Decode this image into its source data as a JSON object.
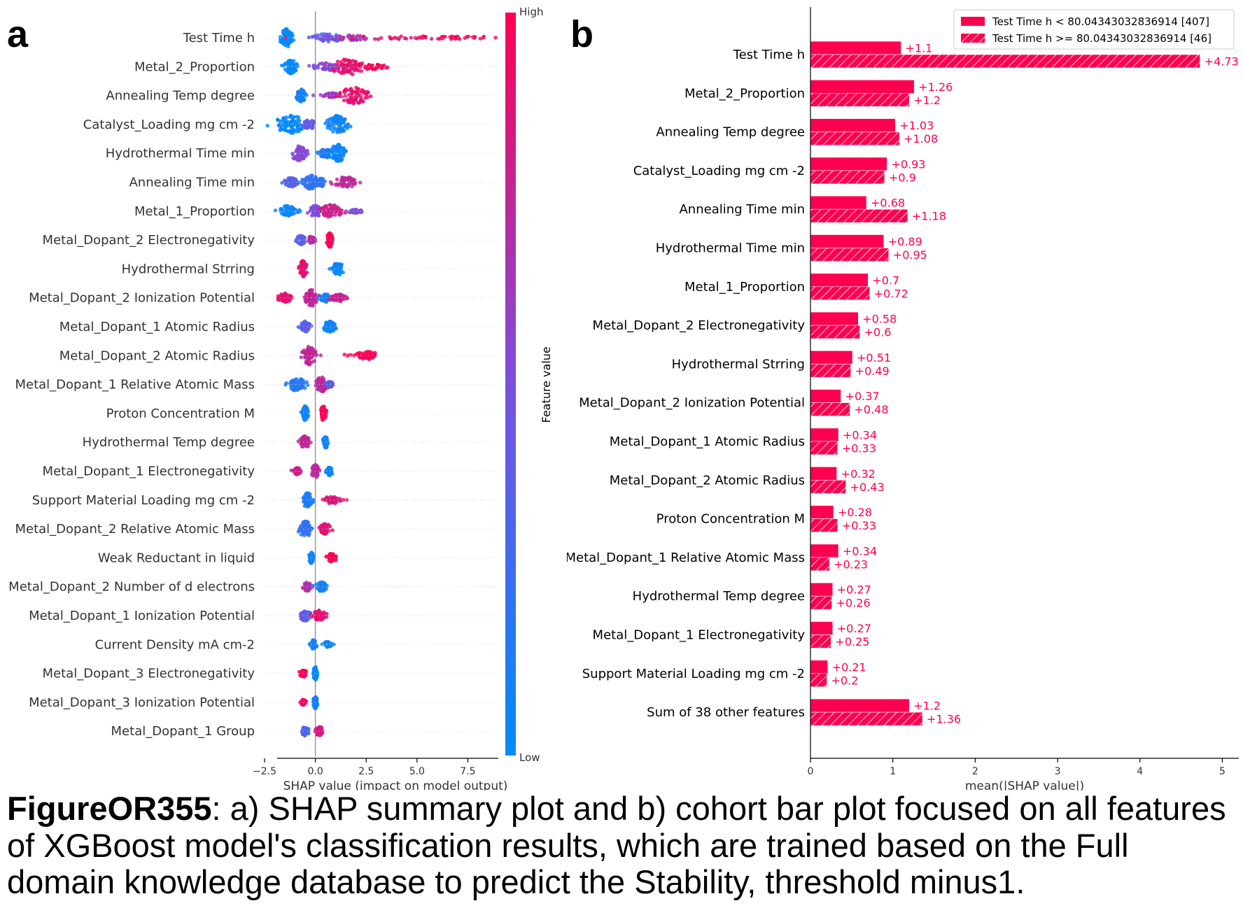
{
  "panels": {
    "a_label": "a",
    "b_label": "b"
  },
  "caption": {
    "figure_id": "FigureOR355",
    "text": ": a) SHAP summary plot and b) cohort bar plot focused on all features of XGBoost model's classification results, which are trained based on the Full domain knowledge database to predict the Stability, threshold minus1."
  },
  "colors": {
    "high": "#ff0051",
    "mid": "#7b4fe0",
    "low": "#008bfb",
    "axis": "#000000",
    "zero_line": "#999999"
  },
  "chart_data": [
    {
      "type": "scatter",
      "subtype": "shap_beeswarm",
      "features": [
        "Test Time h",
        "Metal_2_Proportion",
        "Annealing Temp degree",
        "Catalyst_Loading mg cm -2",
        "Hydrothermal Time min",
        "Annealing Time min",
        "Metal_1_Proportion",
        "Metal_Dopant_2 Electronegativity",
        "Hydrothermal Strring",
        "Metal_Dopant_2 Ionization Potential",
        "Metal_Dopant_1 Atomic Radius",
        "Metal_Dopant_2 Atomic Radius",
        "Metal_Dopant_1 Relative Atomic Mass",
        "Proton Concentration M",
        "Hydrothermal Temp degree",
        "Metal_Dopant_1 Electronegativity",
        "Support Material Loading mg cm -2",
        "Metal_Dopant_2 Relative Atomic Mass",
        "Weak Reductant in liquid",
        "Metal_Dopant_2 Number of d electrons",
        "Metal_Dopant_1 Ionization Potential",
        "Current Density mA cm-2",
        "Metal_Dopant_3 Electronegativity",
        "Metal_Dopant_3 Ionization Potential",
        "Metal_Dopant_1 Group"
      ],
      "clusters": [
        [
          [
            -1.4,
            0.35,
            0,
            1.0
          ],
          [
            0.6,
            0.9,
            0.4,
            0.45
          ],
          [
            1.8,
            1.2,
            0.65,
            0.3
          ],
          [
            4.0,
            3.5,
            0.9,
            0.2
          ],
          [
            7.0,
            2.3,
            1,
            0.1
          ]
        ],
        [
          [
            -1.2,
            0.3,
            0,
            0.8
          ],
          [
            0.5,
            0.7,
            0.55,
            0.45
          ],
          [
            1.6,
            1.0,
            0.9,
            0.9
          ],
          [
            2.9,
            0.6,
            1,
            0.3
          ]
        ],
        [
          [
            -0.7,
            0.25,
            0.1,
            0.7
          ],
          [
            0.8,
            0.5,
            0.6,
            0.3
          ],
          [
            1.9,
            0.9,
            0.9,
            0.9
          ]
        ],
        [
          [
            -1.2,
            0.9,
            0,
            1.0
          ],
          [
            -0.3,
            0.35,
            0.4,
            0.5
          ],
          [
            1.1,
            0.6,
            0.05,
            1.0
          ]
        ],
        [
          [
            -0.8,
            0.45,
            0.55,
            0.8
          ],
          [
            0.5,
            0.35,
            0.15,
            0.5
          ],
          [
            1.1,
            0.4,
            0.05,
            1.0
          ]
        ],
        [
          [
            -1.2,
            0.35,
            0.35,
            0.5
          ],
          [
            -0.2,
            0.45,
            0.2,
            0.8
          ],
          [
            1.5,
            0.7,
            0.75,
            0.6
          ],
          [
            0.3,
            0.15,
            0.2,
            0.5
          ]
        ],
        [
          [
            -1.4,
            0.5,
            0.05,
            0.6
          ],
          [
            0.0,
            0.4,
            0.5,
            0.6
          ],
          [
            0.8,
            0.6,
            0.8,
            0.7
          ],
          [
            2.0,
            0.4,
            0.5,
            0.2
          ]
        ],
        [
          [
            -0.7,
            0.25,
            0.35,
            0.5
          ],
          [
            -0.2,
            0.2,
            0.7,
            0.4
          ],
          [
            0.7,
            0.15,
            1,
            0.8
          ]
        ],
        [
          [
            -0.6,
            0.2,
            0.9,
            0.9
          ],
          [
            1.1,
            0.35,
            0.05,
            0.7
          ]
        ],
        [
          [
            -1.5,
            0.35,
            0.9,
            0.5
          ],
          [
            -0.2,
            0.35,
            0.75,
            0.9
          ],
          [
            0.5,
            0.3,
            0.1,
            0.5
          ],
          [
            1.2,
            0.5,
            0.8,
            0.4
          ]
        ],
        [
          [
            -0.5,
            0.25,
            0.35,
            0.6
          ],
          [
            0.7,
            0.35,
            0.05,
            0.6
          ]
        ],
        [
          [
            -0.3,
            0.35,
            0.75,
            1.0
          ],
          [
            2.5,
            0.8,
            1,
            0.45
          ]
        ],
        [
          [
            -0.9,
            0.55,
            0.15,
            0.7
          ],
          [
            0.3,
            0.35,
            0.75,
            0.8
          ],
          [
            0.7,
            0.2,
            0.4,
            0.3
          ]
        ],
        [
          [
            -0.5,
            0.15,
            0.05,
            0.8
          ],
          [
            0.4,
            0.15,
            1,
            0.8
          ]
        ],
        [
          [
            -0.5,
            0.25,
            0.75,
            0.7
          ],
          [
            0.5,
            0.15,
            0.05,
            0.6
          ]
        ],
        [
          [
            -0.9,
            0.2,
            0.8,
            0.4
          ],
          [
            0.0,
            0.2,
            0.75,
            0.7
          ],
          [
            0.7,
            0.15,
            0.05,
            0.5
          ]
        ],
        [
          [
            -0.4,
            0.25,
            0.1,
            0.8
          ],
          [
            0.8,
            0.5,
            0.85,
            0.4
          ]
        ],
        [
          [
            -0.5,
            0.35,
            0.2,
            0.9
          ],
          [
            0.5,
            0.3,
            0.9,
            0.6
          ]
        ],
        [
          [
            -0.2,
            0.1,
            0.05,
            0.6
          ],
          [
            0.8,
            0.25,
            1,
            0.5
          ]
        ],
        [
          [
            -0.4,
            0.2,
            0.7,
            0.5
          ],
          [
            0.3,
            0.3,
            0.1,
            0.5
          ]
        ],
        [
          [
            -0.5,
            0.3,
            0.4,
            0.6
          ],
          [
            0.2,
            0.35,
            0.9,
            0.6
          ]
        ],
        [
          [
            -0.1,
            0.15,
            0.1,
            0.5
          ],
          [
            0.6,
            0.25,
            0.05,
            0.3
          ]
        ],
        [
          [
            -0.6,
            0.2,
            0.95,
            0.4
          ],
          [
            0.0,
            0.1,
            0.05,
            0.7
          ]
        ],
        [
          [
            -0.6,
            0.15,
            0.95,
            0.3
          ],
          [
            0.0,
            0.1,
            0.1,
            0.7
          ]
        ],
        [
          [
            -0.5,
            0.2,
            0.3,
            0.5
          ],
          [
            0.2,
            0.2,
            0.85,
            0.5
          ]
        ]
      ],
      "xlabel": "SHAP value (impact on model output)",
      "xlim": [
        -2.5,
        9.0
      ],
      "xticks": [
        "−2.5",
        "0.0",
        "2.5",
        "5.0",
        "7.5"
      ],
      "xtick_values": [
        -2.5,
        0.0,
        2.5,
        5.0,
        7.5
      ],
      "colorbar": {
        "label": "Feature value",
        "high": "High",
        "low": "Low"
      }
    },
    {
      "type": "bar",
      "orientation": "horizontal",
      "categories": [
        "Test Time h",
        "Metal_2_Proportion",
        "Annealing Temp degree",
        "Catalyst_Loading mg cm -2",
        "Annealing Time min",
        "Hydrothermal Time min",
        "Metal_1_Proportion",
        "Metal_Dopant_2 Electronegativity",
        "Hydrothermal Strring",
        "Metal_Dopant_2 Ionization Potential",
        "Metal_Dopant_1 Atomic Radius",
        "Metal_Dopant_2 Atomic Radius",
        "Proton Concentration M",
        "Metal_Dopant_1 Relative Atomic Mass",
        "Hydrothermal Temp degree",
        "Metal_Dopant_1 Electronegativity",
        "Support Material Loading mg cm -2",
        "Sum of 38 other features"
      ],
      "series": [
        {
          "name": "Test Time h < 80.04343032836914 [407]",
          "values": [
            1.1,
            1.26,
            1.03,
            0.93,
            0.68,
            0.89,
            0.7,
            0.58,
            0.51,
            0.37,
            0.34,
            0.32,
            0.28,
            0.34,
            0.27,
            0.27,
            0.21,
            1.2
          ],
          "labels": [
            "+1.1",
            "+1.26",
            "+1.03",
            "+0.93",
            "+0.68",
            "+0.89",
            "+0.7",
            "+0.58",
            "+0.51",
            "+0.37",
            "+0.34",
            "+0.32",
            "+0.28",
            "+0.34",
            "+0.27",
            "+0.27",
            "+0.21",
            "+1.2"
          ]
        },
        {
          "name": "Test Time h >= 80.04343032836914 [46]",
          "values": [
            4.73,
            1.2,
            1.08,
            0.9,
            1.18,
            0.95,
            0.72,
            0.6,
            0.49,
            0.48,
            0.33,
            0.43,
            0.33,
            0.23,
            0.26,
            0.25,
            0.2,
            1.36
          ],
          "labels": [
            "+4.73",
            "+1.2",
            "+1.08",
            "+0.9",
            "+1.18",
            "+0.95",
            "+0.72",
            "+0.6",
            "+0.49",
            "+0.48",
            "+0.33",
            "+0.43",
            "+0.33",
            "+0.23",
            "+0.26",
            "+0.25",
            "+0.2",
            "+1.36"
          ]
        }
      ],
      "xlabel": "mean(|SHAP value|)",
      "xlim": [
        0,
        5.2
      ],
      "xticks": [
        "0",
        "1",
        "2",
        "3",
        "4",
        "5"
      ],
      "xtick_values": [
        0,
        1,
        2,
        3,
        4,
        5
      ],
      "legend_placement": "top-right"
    }
  ]
}
